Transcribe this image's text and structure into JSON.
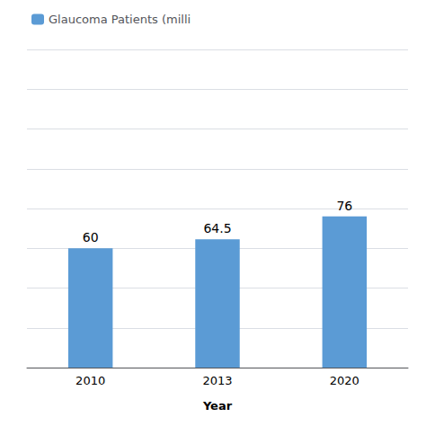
{
  "chart_data": {
    "type": "bar",
    "xlabel": "Year",
    "categories": [
      "2010",
      "2013",
      "2020"
    ],
    "series": [
      {
        "name": "Glaucoma Patients (milli",
        "color": "#5B9BD5",
        "values": [
          60,
          64.5,
          76
        ]
      }
    ],
    "ylim": [
      0,
      160
    ],
    "yticks": [
      0,
      20,
      40,
      60,
      80,
      100,
      120,
      140,
      160
    ],
    "grid": true,
    "legend": "upper left",
    "data_labels": true,
    "tick_labels": "x"
  }
}
